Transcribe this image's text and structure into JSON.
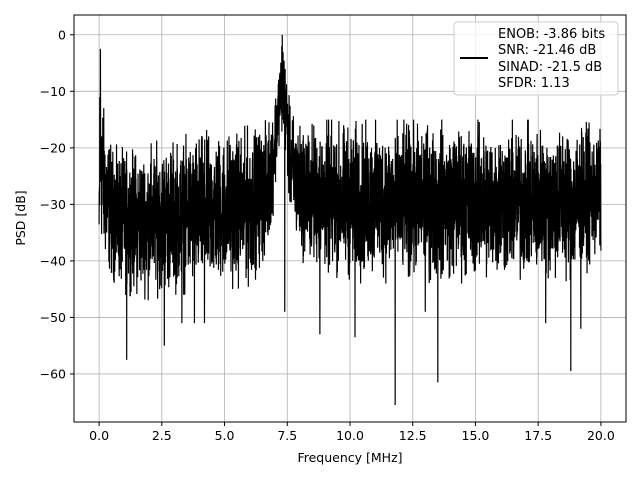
{
  "chart_data": {
    "type": "line",
    "title": "",
    "xlabel": "Frequency [MHz]",
    "ylabel": "PSD [dB]",
    "xlim": [
      -1.0,
      21.0
    ],
    "ylim": [
      -68.5,
      3.5
    ],
    "grid": true,
    "legend_position": "top-right",
    "x_ticks": [
      0.0,
      2.5,
      5.0,
      7.5,
      10.0,
      12.5,
      15.0,
      17.5,
      20.0
    ],
    "x_tick_labels": [
      "0.0",
      "2.5",
      "5.0",
      "7.5",
      "10.0",
      "12.5",
      "15.0",
      "17.5",
      "20.0"
    ],
    "y_ticks": [
      0,
      -10,
      -20,
      -30,
      -40,
      -50,
      -60
    ],
    "y_tick_labels": [
      "0",
      "−10",
      "−20",
      "−30",
      "−40",
      "−50",
      "−60"
    ],
    "series_color": "#000000",
    "legend_lines": [
      "ENOB: -3.86 bits",
      "SNR: -21.46 dB",
      "SINAD: -21.5 dB",
      "SFDR: 1.13"
    ],
    "series": [
      {
        "values_note": "noise-like PSD trace",
        "envelope_x": [
          0.0,
          0.05,
          0.2,
          0.5,
          1.0,
          2.0,
          3.0,
          4.0,
          5.0,
          6.0,
          6.7,
          7.0,
          7.15,
          7.3,
          7.45,
          7.6,
          8.0,
          9.0,
          10.0,
          11.0,
          12.0,
          13.0,
          14.0,
          15.0,
          16.0,
          17.0,
          18.0,
          19.0,
          20.0
        ],
        "envelope_top": [
          -28,
          -2.5,
          -13,
          -19,
          -20,
          -19,
          -18,
          -17,
          -16.5,
          -16,
          -15,
          -10,
          -5,
          0,
          -5,
          -12,
          -15,
          -15,
          -15,
          -15,
          -15,
          -15,
          -15,
          -15,
          -15,
          -15,
          -15,
          -15,
          -16
        ],
        "envelope_bottom": [
          -40,
          -38,
          -41,
          -44,
          -46,
          -47,
          -46,
          -46,
          -45,
          -45,
          -40,
          -30,
          -20,
          -18,
          -22,
          -33,
          -40,
          -43,
          -44,
          -44,
          -44,
          -44,
          -44,
          -44,
          -44,
          -44,
          -44,
          -44,
          -40
        ],
        "dips": [
          {
            "x": 1.1,
            "y": -57.5
          },
          {
            "x": 2.6,
            "y": -55
          },
          {
            "x": 3.3,
            "y": -51
          },
          {
            "x": 3.8,
            "y": -51
          },
          {
            "x": 4.2,
            "y": -51
          },
          {
            "x": 7.4,
            "y": -49
          },
          {
            "x": 8.8,
            "y": -53
          },
          {
            "x": 10.2,
            "y": -53.5
          },
          {
            "x": 11.8,
            "y": -65.5
          },
          {
            "x": 13.5,
            "y": -61.5
          },
          {
            "x": 13.0,
            "y": -49
          },
          {
            "x": 17.8,
            "y": -51
          },
          {
            "x": 18.8,
            "y": -59.5
          },
          {
            "x": 19.2,
            "y": -52
          }
        ]
      }
    ]
  }
}
